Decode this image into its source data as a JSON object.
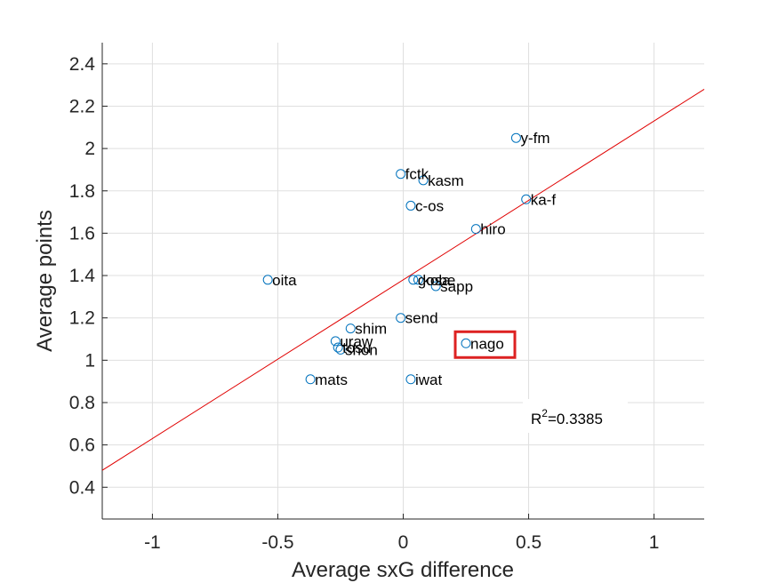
{
  "chart_data": {
    "type": "scatter",
    "xlabel": "Average sxG difference",
    "ylabel": "Average points",
    "xlim": [
      -1.2,
      1.2
    ],
    "ylim": [
      0.25,
      2.5
    ],
    "xticks": [
      -1,
      -0.5,
      0,
      0.5,
      1
    ],
    "xtick_labels": [
      "-1",
      "-0.5",
      "0",
      "0.5",
      "1"
    ],
    "yticks": [
      0.4,
      0.6,
      0.8,
      1,
      1.2,
      1.4,
      1.6,
      1.8,
      2,
      2.2,
      2.4
    ],
    "ytick_labels": [
      "0.4",
      "0.6",
      "0.8",
      "1",
      "1.2",
      "1.4",
      "1.6",
      "1.8",
      "2",
      "2.2",
      "2.4"
    ],
    "grid": true,
    "points": [
      {
        "label": "y-fm",
        "x": 0.45,
        "y": 2.05
      },
      {
        "label": "fctk",
        "x": -0.01,
        "y": 1.88
      },
      {
        "label": "kasm",
        "x": 0.08,
        "y": 1.85
      },
      {
        "label": "ka-f",
        "x": 0.49,
        "y": 1.76
      },
      {
        "label": "c-os",
        "x": 0.03,
        "y": 1.73
      },
      {
        "label": "hiro",
        "x": 0.29,
        "y": 1.62
      },
      {
        "label": "oita",
        "x": -0.54,
        "y": 1.38
      },
      {
        "label": "gosa",
        "x": 0.04,
        "y": 1.38
      },
      {
        "label": "kobe",
        "x": 0.06,
        "y": 1.38
      },
      {
        "label": "sapp",
        "x": 0.13,
        "y": 1.35
      },
      {
        "label": "send",
        "x": -0.01,
        "y": 1.2
      },
      {
        "label": "shim",
        "x": -0.21,
        "y": 1.15
      },
      {
        "label": "uraw",
        "x": -0.27,
        "y": 1.09
      },
      {
        "label": "tosu",
        "x": -0.26,
        "y": 1.06
      },
      {
        "label": "shon",
        "x": -0.25,
        "y": 1.05
      },
      {
        "label": "nago",
        "x": 0.25,
        "y": 1.08
      },
      {
        "label": "mats",
        "x": -0.37,
        "y": 0.91
      },
      {
        "label": "iwat",
        "x": 0.03,
        "y": 0.91
      }
    ],
    "fit_line": {
      "slope": 0.75,
      "intercept": 1.38,
      "color": "#e00000"
    },
    "r_squared_label": "R",
    "r_squared_sup": "2",
    "r_squared_value": "=0.3385",
    "highlight_label": "nago",
    "highlight_color": "#dd2222",
    "marker_color": "#0072bd"
  }
}
